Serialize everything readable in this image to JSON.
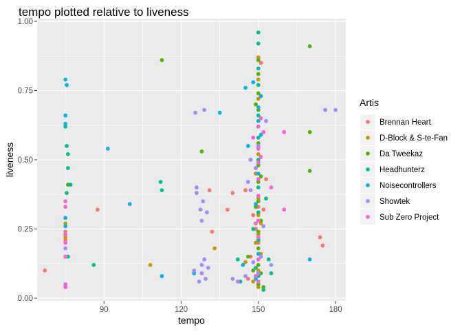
{
  "chart_data": {
    "type": "scatter",
    "title": "tempo plotted relative to liveness",
    "xlabel": "tempo",
    "ylabel": "liveness",
    "xlim": [
      64,
      184
    ],
    "ylim": [
      -0.01,
      1.01
    ],
    "x_ticks": [
      90,
      120,
      150,
      180
    ],
    "x_tick_labels": [
      "90",
      "120",
      "150",
      "180"
    ],
    "y_ticks": [
      0,
      0.25,
      0.5,
      0.75,
      1.0
    ],
    "y_tick_labels": [
      "0.00",
      "0.25",
      "0.50",
      "0.75",
      "1.00"
    ],
    "grid": true,
    "legend_position": "right",
    "legend_title": "Artis",
    "series": [
      {
        "name": "Brennan Heart",
        "color": "#F8766D",
        "points": [
          [
            67,
            0.1
          ],
          [
            75,
            0.24
          ],
          [
            75,
            0.21
          ],
          [
            75,
            0.15
          ],
          [
            87.5,
            0.32
          ],
          [
            131,
            0.39
          ],
          [
            132,
            0.24
          ],
          [
            138,
            0.32
          ],
          [
            140,
            0.38
          ],
          [
            145,
            0.39
          ],
          [
            146,
            0.07
          ],
          [
            147,
            0.15
          ],
          [
            148,
            0.3
          ],
          [
            149,
            0.25
          ],
          [
            150,
            0.2
          ],
          [
            150,
            0.33
          ],
          [
            151,
            0.85
          ],
          [
            152,
            0.32
          ],
          [
            153,
            0.43
          ],
          [
            174,
            0.22
          ],
          [
            175,
            0.19
          ]
        ]
      },
      {
        "name": "D-Block & S-te-Fan",
        "color": "#C49A00",
        "points": [
          [
            75,
            0.27
          ],
          [
            75,
            0.22
          ],
          [
            108,
            0.12
          ],
          [
            133,
            0.18
          ],
          [
            145,
            0.13
          ],
          [
            148,
            0.06
          ],
          [
            149,
            0.2
          ],
          [
            149,
            0.45
          ],
          [
            150,
            0.04
          ],
          [
            150,
            0.1
          ],
          [
            150,
            0.23
          ],
          [
            150,
            0.3
          ],
          [
            150,
            0.36
          ],
          [
            150,
            0.52
          ],
          [
            150,
            0.72
          ],
          [
            150,
            0.79
          ],
          [
            150,
            0.87
          ],
          [
            151,
            0.16
          ],
          [
            151,
            0.27
          ]
        ]
      },
      {
        "name": "Da Tweekaz",
        "color": "#53B400",
        "points": [
          [
            76,
            0.41
          ],
          [
            112.5,
            0.86
          ],
          [
            128,
            0.53
          ],
          [
            146,
            0.15
          ],
          [
            148,
            0.1
          ],
          [
            149,
            0.33
          ],
          [
            149,
            0.7
          ],
          [
            150,
            0.05
          ],
          [
            150,
            0.12
          ],
          [
            150,
            0.18
          ],
          [
            150,
            0.24
          ],
          [
            150,
            0.35
          ],
          [
            150,
            0.42
          ],
          [
            150,
            0.48
          ],
          [
            150,
            0.56
          ],
          [
            150,
            0.62
          ],
          [
            150,
            0.68
          ],
          [
            150,
            0.74
          ],
          [
            150,
            0.81
          ],
          [
            150,
            0.86
          ],
          [
            151,
            0.09
          ],
          [
            151,
            0.28
          ],
          [
            151,
            0.44
          ],
          [
            152,
            0.04
          ],
          [
            170,
            0.91
          ],
          [
            170,
            0.6
          ],
          [
            170,
            0.46
          ]
        ]
      },
      {
        "name": "Headhunterz",
        "color": "#00C094",
        "points": [
          [
            75,
            0.62
          ],
          [
            75.5,
            0.55
          ],
          [
            75.5,
            0.38
          ],
          [
            76,
            0.52
          ],
          [
            76,
            0.47
          ],
          [
            76,
            0.15
          ],
          [
            77,
            0.41
          ],
          [
            86,
            0.12
          ],
          [
            112,
            0.42
          ],
          [
            112.5,
            0.39
          ],
          [
            142,
            0.14
          ],
          [
            143,
            0.06
          ],
          [
            148,
            0.25
          ],
          [
            149,
            0.11
          ],
          [
            150,
            0.96
          ],
          [
            150,
            0.92
          ],
          [
            150,
            0.83
          ],
          [
            150,
            0.77
          ],
          [
            150,
            0.66
          ],
          [
            150,
            0.58
          ],
          [
            150,
            0.5
          ],
          [
            150,
            0.4
          ],
          [
            150,
            0.31
          ],
          [
            150,
            0.21
          ],
          [
            150,
            0.08
          ],
          [
            152,
            0.03
          ],
          [
            153,
            0.36
          ],
          [
            154,
            0.14
          ],
          [
            155,
            0.09
          ]
        ]
      },
      {
        "name": "Noisecontrollers",
        "color": "#00B6EB",
        "points": [
          [
            75,
            0.79
          ],
          [
            75.5,
            0.77
          ],
          [
            75,
            0.66
          ],
          [
            75,
            0.63
          ],
          [
            75,
            0.29
          ],
          [
            75,
            0.26
          ],
          [
            75,
            0.05
          ],
          [
            91.5,
            0.54
          ],
          [
            100,
            0.34
          ],
          [
            112.5,
            0.08
          ],
          [
            125,
            0.09
          ],
          [
            135,
            0.67
          ],
          [
            144,
            0.12
          ],
          [
            145,
            0.76
          ],
          [
            146,
            0.55
          ],
          [
            147,
            0.5
          ],
          [
            148,
            0.78
          ],
          [
            149,
            0.34
          ],
          [
            149,
            0.07
          ],
          [
            150,
            0.69
          ],
          [
            150,
            0.64
          ],
          [
            150,
            0.45
          ],
          [
            150,
            0.16
          ],
          [
            151,
            0.73
          ],
          [
            151,
            0.59
          ],
          [
            170,
            0.14
          ]
        ]
      },
      {
        "name": "Showtek",
        "color": "#A58AFF",
        "points": [
          [
            75,
            0.18
          ],
          [
            125,
            0.1
          ],
          [
            125.5,
            0.67
          ],
          [
            126,
            0.4
          ],
          [
            126,
            0.38
          ],
          [
            127,
            0.06
          ],
          [
            127.5,
            0.32
          ],
          [
            128,
            0.28
          ],
          [
            128,
            0.12
          ],
          [
            128,
            0.09
          ],
          [
            128.5,
            0.35
          ],
          [
            129,
            0.68
          ],
          [
            129,
            0.14
          ],
          [
            129.5,
            0.07
          ],
          [
            130,
            0.31
          ],
          [
            130.5,
            0.11
          ],
          [
            140,
            0.07
          ],
          [
            142,
            0.06
          ],
          [
            145,
            0.08
          ],
          [
            146,
            0.42
          ],
          [
            147,
            0.5
          ],
          [
            147,
            0.39
          ],
          [
            148,
            0.13
          ],
          [
            149,
            0.47
          ],
          [
            150,
            0.09
          ],
          [
            150,
            0.55
          ],
          [
            151,
            0.15
          ],
          [
            152,
            0.26
          ],
          [
            153,
            0.64
          ],
          [
            155,
            0.12
          ],
          [
            176,
            0.68
          ],
          [
            180,
            0.68
          ]
        ]
      },
      {
        "name": "Sub Zero Project",
        "color": "#FB61D7",
        "points": [
          [
            75,
            0.35
          ],
          [
            75,
            0.33
          ],
          [
            75,
            0.23
          ],
          [
            75,
            0.2
          ],
          [
            75,
            0.15
          ],
          [
            75,
            0.05
          ],
          [
            75,
            0.04
          ],
          [
            148,
            0.58
          ],
          [
            149,
            0.27
          ],
          [
            149,
            0.08
          ],
          [
            150,
            0.62
          ],
          [
            150,
            0.54
          ],
          [
            150,
            0.49
          ],
          [
            150,
            0.43
          ],
          [
            150,
            0.37
          ],
          [
            150,
            0.28
          ],
          [
            150,
            0.22
          ],
          [
            150,
            0.14
          ],
          [
            150,
            0.06
          ],
          [
            151,
            0.65
          ],
          [
            151,
            0.51
          ],
          [
            152,
            0.6
          ],
          [
            155,
            0.4
          ],
          [
            160,
            0.6
          ],
          [
            160,
            0.32
          ]
        ]
      }
    ]
  }
}
